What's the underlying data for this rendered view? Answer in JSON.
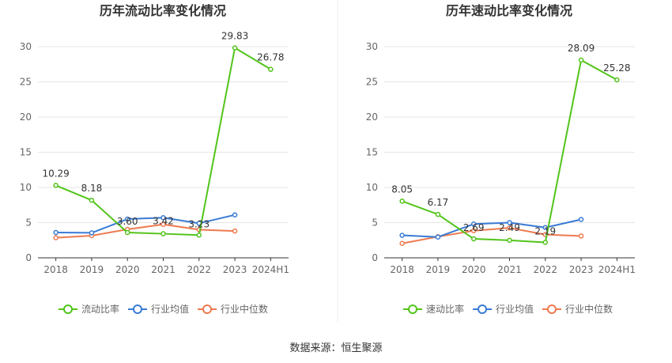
{
  "source_label": "数据来源：",
  "source_value": "恒生聚源",
  "colors": {
    "primary": "#52c41a",
    "industry_avg": "#3a7bd5",
    "industry_median": "#ee7a4f",
    "grid": "#e6e6e6",
    "axis": "#333333"
  },
  "chart_data": [
    {
      "type": "line",
      "title": "历年流动比率变化情况",
      "categories": [
        "2018",
        "2019",
        "2020",
        "2021",
        "2022",
        "2023",
        "2024H1"
      ],
      "yticks": [
        "0",
        "5",
        "10",
        "15",
        "20",
        "25",
        "30"
      ],
      "ylim": [
        0,
        30
      ],
      "grid": true,
      "legend_position": "bottom",
      "series": [
        {
          "name": "流动比率",
          "values": [
            10.29,
            8.18,
            3.6,
            3.42,
            3.23,
            29.83,
            26.78
          ],
          "labels": [
            "10.29",
            "8.18",
            "3.60",
            "3.42",
            "3.23",
            "29.83",
            "26.78"
          ]
        },
        {
          "name": "行业均值",
          "values": [
            3.6,
            3.55,
            5.5,
            5.7,
            4.9,
            6.1,
            null
          ]
        },
        {
          "name": "行业中位数",
          "values": [
            2.85,
            3.15,
            4.05,
            4.75,
            4.0,
            3.8,
            null
          ]
        }
      ]
    },
    {
      "type": "line",
      "title": "历年速动比率变化情况",
      "categories": [
        "2018",
        "2019",
        "2020",
        "2021",
        "2022",
        "2023",
        "2024H1"
      ],
      "yticks": [
        "0",
        "5",
        "10",
        "15",
        "20",
        "25",
        "30"
      ],
      "ylim": [
        0,
        30
      ],
      "grid": true,
      "legend_position": "bottom",
      "series": [
        {
          "name": "速动比率",
          "values": [
            8.05,
            6.17,
            2.69,
            2.49,
            2.19,
            28.09,
            25.28
          ],
          "labels": [
            "8.05",
            "6.17",
            "2.69",
            "2.49",
            "2.19",
            "28.09",
            "25.28"
          ]
        },
        {
          "name": "行业均值",
          "values": [
            3.2,
            2.95,
            4.8,
            5.0,
            4.3,
            5.45,
            null
          ]
        },
        {
          "name": "行业中位数",
          "values": [
            2.05,
            3.0,
            3.85,
            4.25,
            3.3,
            3.1,
            null
          ]
        }
      ]
    }
  ]
}
